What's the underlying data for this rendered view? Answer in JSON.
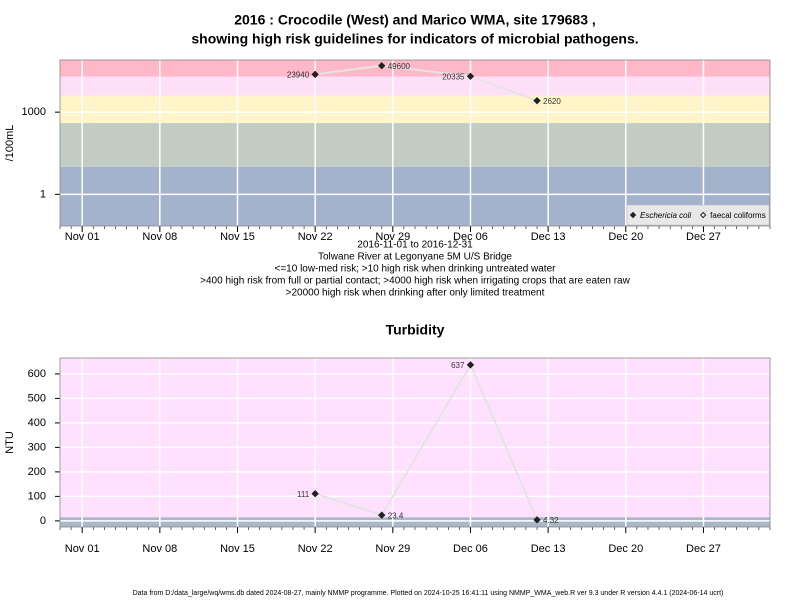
{
  "chart_data": [
    {
      "type": "line",
      "title": [
        "2016 : Crocodile (West) and Marico WMA, site 179683 ,",
        "showing high risk guidelines for indicators of microbial pathogens."
      ],
      "y_label": "/100mL",
      "notes": [
        "2016-11-01 to 2016-12-31",
        "Tolwane River at Legonyane 5M U/S Bridge",
        "<=10 low-med risk; >10 high risk when drinking untreated water",
        ">400 high risk from full or partial contact; >4000 high risk when irrigating crops that are eaten raw",
        ">20000 high risk when drinking after only limited treatment"
      ],
      "x": [
        "Nov 22",
        "Nov 28",
        "Dec 06",
        "Dec 12"
      ],
      "xlim": [
        "Oct 30",
        "Jan 02"
      ],
      "xticks": [
        "Nov 01",
        "Nov 08",
        "Nov 15",
        "Nov 22",
        "Nov 29",
        "Dec 06",
        "Dec 13",
        "Dec 20",
        "Dec 27"
      ],
      "log_y": true,
      "ylim": [
        0.07,
        80000
      ],
      "yticks": [
        1,
        1000
      ],
      "grid": true,
      "bands": {
        "thresholds": [
          10,
          400,
          4000,
          20000
        ],
        "colors": [
          "#a3b3cc",
          "#c3ccc3",
          "#fff5c8",
          "#fde0f8",
          "#ffb8c8"
        ]
      },
      "legend": "bottom-right",
      "line_color": "#e4e4e4",
      "series": [
        {
          "name": "Eschericia coli",
          "color": "#222222",
          "marker": "filled",
          "values": [
            23940,
            49600,
            20335,
            2620
          ]
        },
        {
          "name": "faecal coliforms",
          "color": "#222222",
          "marker": "open",
          "values": [
            null,
            null,
            null,
            null
          ]
        }
      ]
    },
    {
      "type": "line",
      "title": [
        "Turbidity"
      ],
      "y_label": "NTU",
      "x": [
        "Nov 22",
        "Nov 28",
        "Dec 06",
        "Dec 12"
      ],
      "xlim": [
        "Oct 30",
        "Jan 02"
      ],
      "xticks": [
        "Nov 01",
        "Nov 08",
        "Nov 15",
        "Nov 22",
        "Nov 29",
        "Dec 06",
        "Dec 13",
        "Dec 20",
        "Dec 27"
      ],
      "log_y": false,
      "ylim": [
        -25,
        665
      ],
      "yticks": [
        0,
        100,
        200,
        300,
        400,
        500,
        600
      ],
      "grid": true,
      "bands": {
        "thresholds": [
          15
        ],
        "colors": [
          "#a9b8c8",
          "#ffe0ff"
        ]
      },
      "line_color": "#e4e4e4",
      "series": [
        {
          "color": "#222222",
          "marker": "filled",
          "values": [
            111,
            23.4,
            637,
            4.32
          ]
        }
      ]
    }
  ],
  "footer": "Data from D:/data_large/wq/wms.db dated 2024-08-27, mainly NMMP programme. Plotted on 2024-10-25 16:41:11 using NMMP_WMA_web.R ver 9.3 under R version 4.4.1 (2024-06-14 ucrt)"
}
